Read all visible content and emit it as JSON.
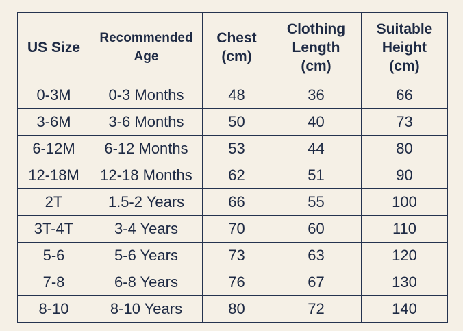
{
  "table": {
    "headers": [
      [
        "US Size"
      ],
      [
        "Recommended",
        "Age"
      ],
      [
        "Chest",
        "(cm)"
      ],
      [
        "Clothing",
        "Length",
        "(cm)"
      ],
      [
        "Suitable",
        "Height",
        "(cm)"
      ]
    ],
    "rows": [
      [
        "0-3M",
        "0-3 Months",
        "48",
        "36",
        "66"
      ],
      [
        "3-6M",
        "3-6 Months",
        "50",
        "40",
        "73"
      ],
      [
        "6-12M",
        "6-12 Months",
        "53",
        "44",
        "80"
      ],
      [
        "12-18M",
        "12-18 Months",
        "62",
        "51",
        "90"
      ],
      [
        "2T",
        "1.5-2 Years",
        "66",
        "55",
        "100"
      ],
      [
        "3T-4T",
        "3-4 Years",
        "70",
        "60",
        "110"
      ],
      [
        "5-6",
        "5-6 Years",
        "73",
        "63",
        "120"
      ],
      [
        "7-8",
        "6-8 Years",
        "76",
        "67",
        "130"
      ],
      [
        "8-10",
        "8-10 Years",
        "80",
        "72",
        "140"
      ]
    ]
  }
}
